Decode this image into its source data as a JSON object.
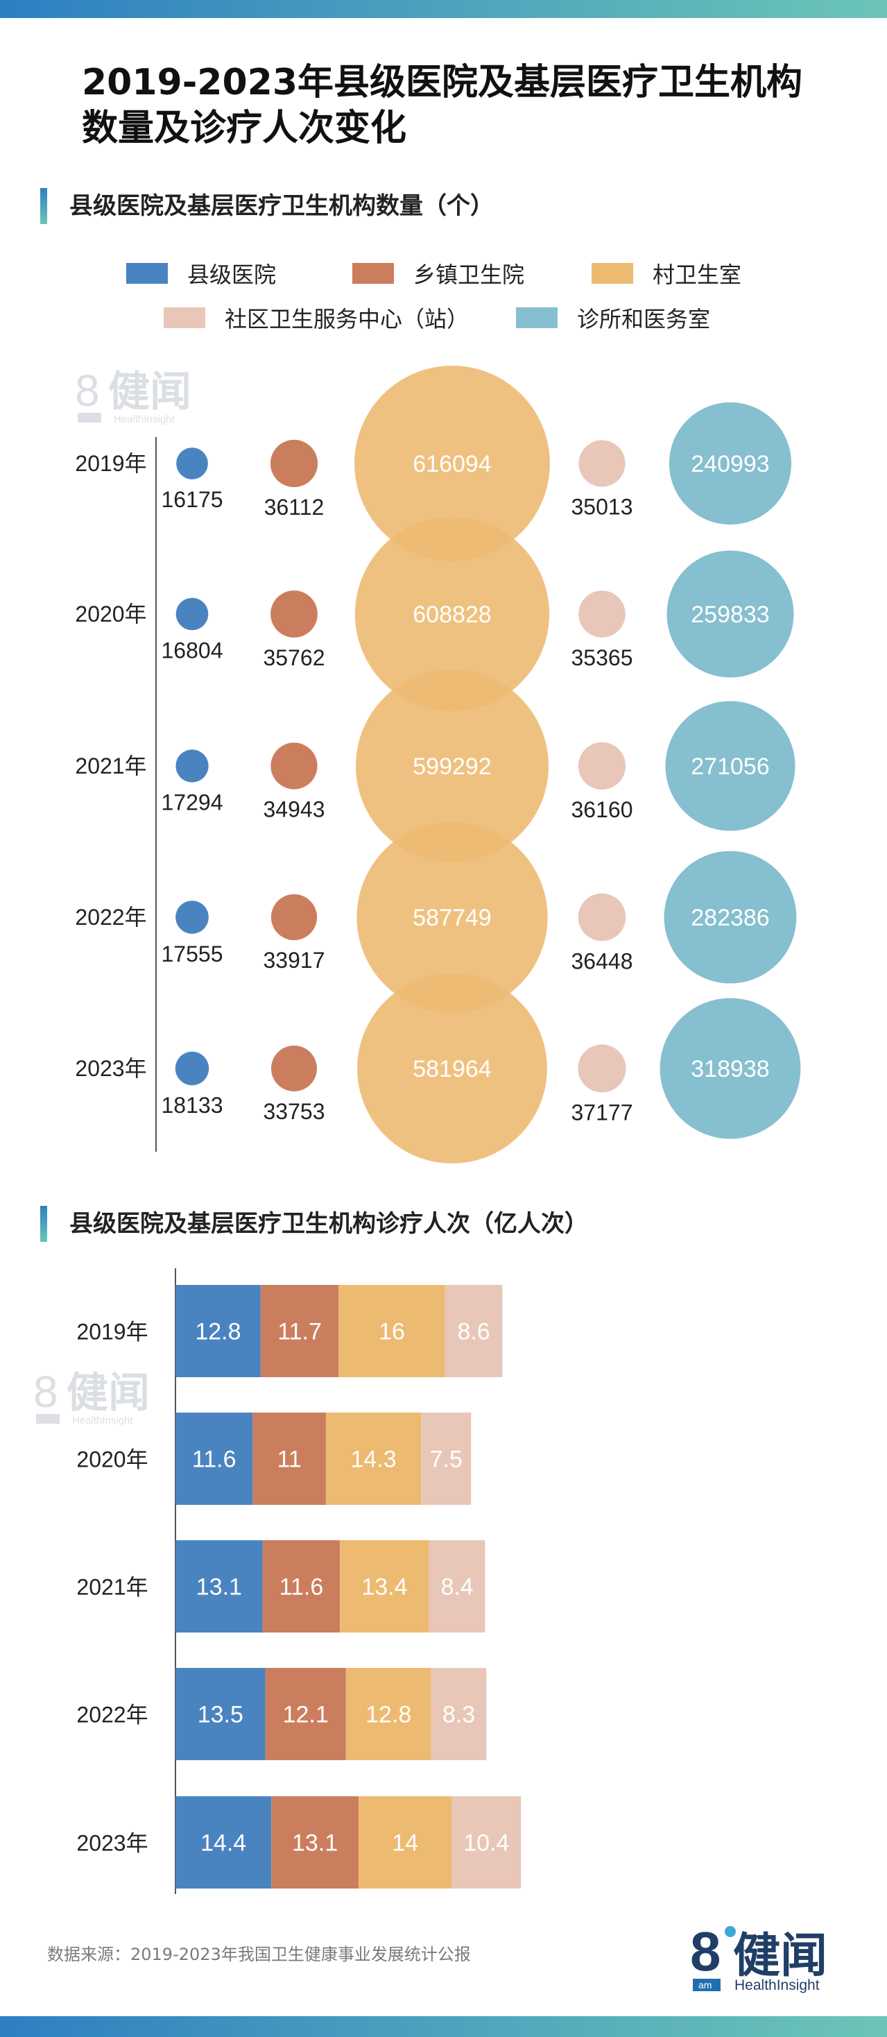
{
  "title_line1": "2019-2023年县级医院及基层医疗卫生机构",
  "title_line2": "数量及诊疗人次变化",
  "section1_title": "县级医院及基层医疗卫生机构数量（个）",
  "section2_title": "县级医院及基层医疗卫生机构诊疗人次（亿人次）",
  "legend": [
    {
      "label": "县级医院",
      "color": "#4A84C0"
    },
    {
      "label": "乡镇卫生院",
      "color": "#CB7E5E"
    },
    {
      "label": "村卫生室",
      "color": "#EDBA72"
    },
    {
      "label": "社区卫生服务中心（站）",
      "color": "#E8C7B8"
    },
    {
      "label": "诊所和医务室",
      "color": "#86BFCF"
    }
  ],
  "colors": {
    "accent_gradient_start": "#2E7FC2",
    "accent_gradient_end": "#6CC5B7",
    "axis": "#555555",
    "value_text_light": "#ffffff"
  },
  "source": "数据来源：2019-2023年我国卫生健康事业发展统计公报",
  "logo": {
    "number": "8",
    "name": "健闻",
    "sub": "HealthInsight",
    "badge": "am"
  },
  "chart_data": [
    {
      "type": "bubble",
      "title": "县级医院及基层医疗卫生机构数量（个）",
      "categories": [
        "2019年",
        "2020年",
        "2021年",
        "2022年",
        "2023年"
      ],
      "series": [
        {
          "name": "县级医院",
          "values": [
            16175,
            16804,
            17294,
            17555,
            18133
          ]
        },
        {
          "name": "乡镇卫生院",
          "values": [
            36112,
            35762,
            34943,
            33917,
            33753
          ]
        },
        {
          "name": "村卫生室",
          "values": [
            616094,
            608828,
            599292,
            587749,
            581964
          ]
        },
        {
          "name": "社区卫生服务中心（站）",
          "values": [
            35013,
            35365,
            36160,
            36448,
            37177
          ]
        },
        {
          "name": "诊所和医务室",
          "values": [
            240993,
            259833,
            271056,
            282386,
            318938
          ]
        }
      ]
    },
    {
      "type": "bar",
      "stacked": true,
      "orientation": "horizontal",
      "title": "县级医院及基层医疗卫生机构诊疗人次（亿人次）",
      "categories": [
        "2019年",
        "2020年",
        "2021年",
        "2022年",
        "2023年"
      ],
      "series": [
        {
          "name": "县级医院",
          "values": [
            12.8,
            11.6,
            13.1,
            13.5,
            14.4
          ]
        },
        {
          "name": "乡镇卫生院",
          "values": [
            11.7,
            11,
            11.6,
            12.1,
            13.1
          ]
        },
        {
          "name": "村卫生室",
          "values": [
            16,
            14.3,
            13.4,
            12.8,
            14
          ]
        },
        {
          "name": "社区卫生服务中心（站）",
          "values": [
            8.6,
            7.5,
            8.4,
            8.3,
            10.4
          ]
        }
      ]
    }
  ]
}
